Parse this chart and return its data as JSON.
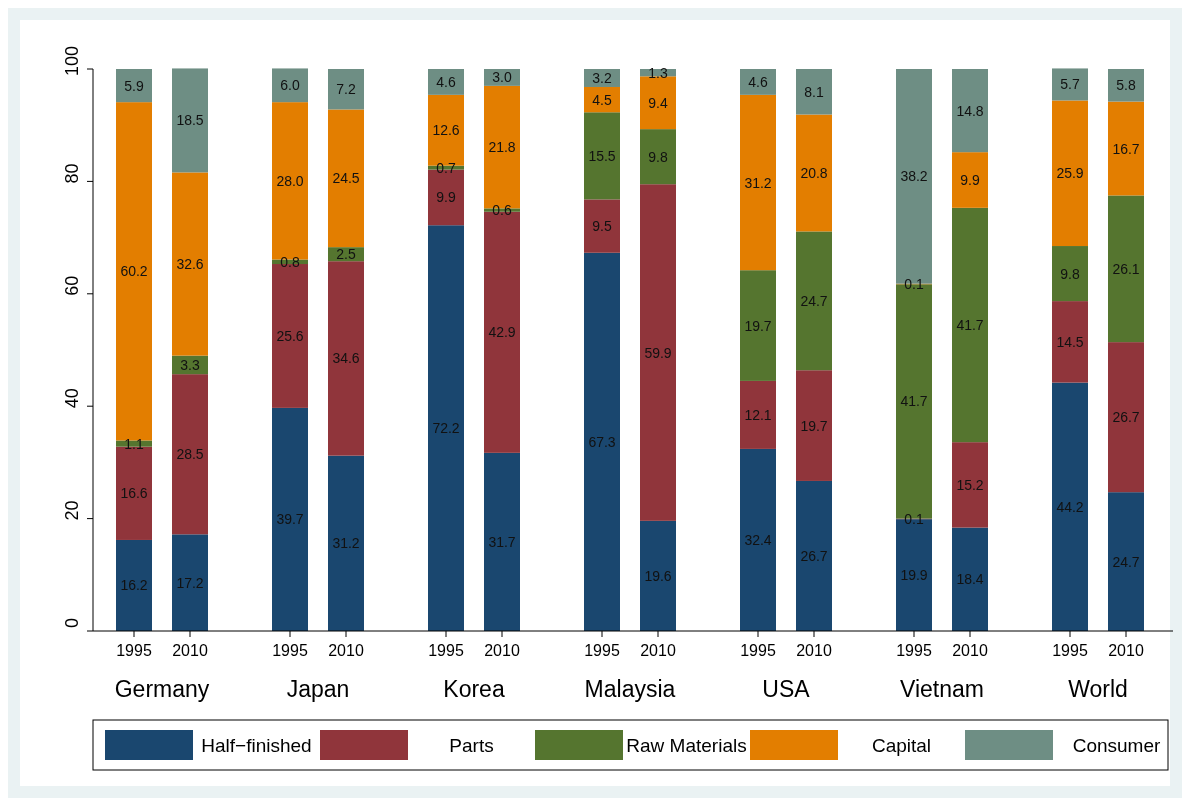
{
  "chart_data": {
    "type": "bar",
    "stacked": true,
    "categories": [
      "1995",
      "2010",
      "1995",
      "2010",
      "1995",
      "2010",
      "1995",
      "2010",
      "1995",
      "2010",
      "1995",
      "2010",
      "1995",
      "2010"
    ],
    "annotations": [
      "Germany",
      "Japan",
      "Korea",
      "Malaysia",
      "USA",
      "Vietnam",
      "World"
    ],
    "series": [
      {
        "name": "Half−finished",
        "color": "#1a476f",
        "values": [
          16.2,
          17.2,
          39.7,
          31.2,
          72.2,
          31.7,
          67.3,
          19.6,
          32.4,
          26.7,
          19.9,
          18.4,
          44.2,
          24.7
        ],
        "value_labels": [
          "16.2",
          "17.2",
          "39.7",
          "31.2",
          "72.2",
          "31.7",
          "67.3",
          "19.6",
          "32.4",
          "26.7",
          "19.9",
          "18.4",
          "44.2",
          "24.7"
        ]
      },
      {
        "name": "Parts",
        "color": "#90353b",
        "values": [
          16.6,
          28.5,
          25.6,
          34.6,
          9.9,
          42.9,
          9.5,
          59.9,
          12.1,
          19.7,
          0.1,
          15.2,
          14.5,
          26.7
        ],
        "value_labels": [
          "16.6",
          "28.5",
          "25.6",
          "34.6",
          "9.9",
          "42.9",
          "9.5",
          "59.9",
          "12.1",
          "19.7",
          "0.1",
          "15.2",
          "14.5",
          "26.7"
        ]
      },
      {
        "name": "Raw Materials",
        "color": "#55752f",
        "values": [
          1.1,
          3.3,
          0.8,
          2.5,
          0.7,
          0.6,
          15.5,
          9.8,
          19.7,
          24.7,
          41.7,
          41.7,
          9.8,
          26.1
        ],
        "value_labels": [
          "1.1",
          "3.3",
          "0.8",
          "2.5",
          "0.7",
          "0.6",
          "15.5",
          "9.8",
          "19.7",
          "24.7",
          "41.7",
          "41.7",
          "9.8",
          "26.1"
        ]
      },
      {
        "name": "Capital",
        "color": "#e37e00",
        "values": [
          60.2,
          32.6,
          28.0,
          24.5,
          12.6,
          21.8,
          4.5,
          9.4,
          31.2,
          20.8,
          0.1,
          9.9,
          25.9,
          16.7
        ],
        "value_labels": [
          "60.2",
          "32.6",
          "28.0",
          "24.5",
          "12.6",
          "21.8",
          "4.5",
          "9.4",
          "31.2",
          "20.8",
          "0.1",
          "9.9",
          "25.9",
          "16.7"
        ]
      },
      {
        "name": "Consumer",
        "color": "#6e8e84",
        "values": [
          5.9,
          18.5,
          6.0,
          7.2,
          4.6,
          3.0,
          3.2,
          1.3,
          4.6,
          8.1,
          38.2,
          14.8,
          5.7,
          5.8
        ],
        "value_labels": [
          "5.9",
          "18.5",
          "6.0",
          "7.2",
          "4.6",
          "3.0",
          "3.2",
          "1.3",
          "4.6",
          "8.1",
          "38.2",
          "14.8",
          "5.7",
          "5.8"
        ]
      }
    ],
    "ylim": [
      0,
      100
    ],
    "yticks": [
      0,
      20,
      40,
      60,
      80,
      100
    ],
    "legend": "bottom"
  }
}
